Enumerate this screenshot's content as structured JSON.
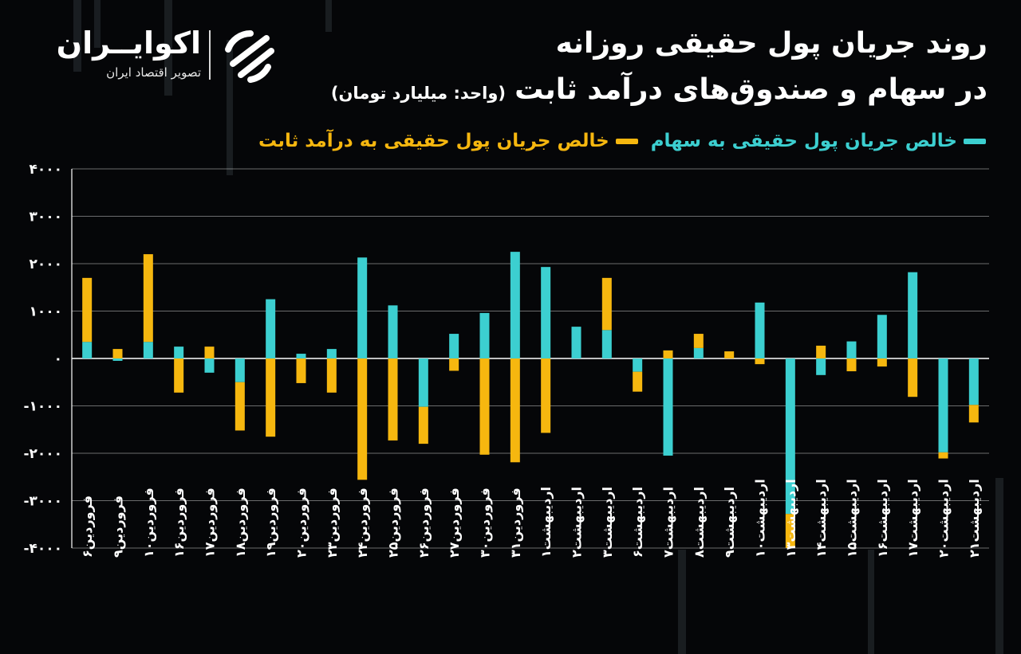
{
  "logo": {
    "name": "اکوایــران",
    "tagline": "تصویر اقتصاد ایران"
  },
  "title": {
    "line1": "روند جریان پول حقیقی روزانه",
    "line2": "در سهام و صندوق‌های درآمد ثابت",
    "unit": "(واحد: میلیارد تومان)"
  },
  "colors": {
    "background": "#050608",
    "stocks": "#3ccfd0",
    "fixed_income": "#f6b70f",
    "grid": "#ffffff"
  },
  "chart_data": {
    "type": "bar",
    "stacked": true,
    "ylim": [
      -4000,
      4000
    ],
    "yticks": [
      4000,
      3000,
      2000,
      1000,
      0,
      -1000,
      -2000,
      -3000,
      -4000
    ],
    "ytick_labels": [
      "۴۰۰۰",
      "۳۰۰۰",
      "۲۰۰۰",
      "۱۰۰۰",
      "۰",
      "-۱۰۰۰",
      "-۲۰۰۰",
      "-۳۰۰۰",
      "-۴۰۰۰"
    ],
    "grid": true,
    "legend_position": "top-right",
    "categories": [
      "فروردین۶",
      "فروردین۹",
      "فروردین۱۰",
      "فروردین۱۶",
      "فروردین۱۷",
      "فروردین۱۸",
      "فروردین۱۹",
      "فروردین۲۰",
      "فروردین۲۳",
      "فروردین۲۴",
      "فروردین۲۵",
      "فروردین۲۶",
      "فروردین۲۷",
      "فروردین۳۰",
      "فروردین۳۱",
      "اردیبهشت۱",
      "اردیبهشت۲",
      "اردیبهشت۳",
      "اردیبهشت۶",
      "اردیبهشت۷",
      "اردیبهشت۸",
      "اردیبهشت۹",
      "اردیبهشت۱۰",
      "اردیبهشت۱۳",
      "اردیبهشت۱۴",
      "اردیبهشت۱۵",
      "اردیبهشت۱۶",
      "اردیبهشت۱۷",
      "اردیبهشت۲۰",
      "اردیبهشت۲۱"
    ],
    "series": [
      {
        "name": "خالص جریان پول حقیقی به سهام",
        "color": "#3ccfd0",
        "values": [
          350,
          -50,
          350,
          250,
          -300,
          -500,
          1250,
          100,
          200,
          2130,
          1120,
          -1020,
          520,
          960,
          2250,
          1930,
          670,
          600,
          -280,
          -2050,
          220,
          0,
          1180,
          -3280,
          -350,
          360,
          920,
          1820,
          -1980,
          -980
        ]
      },
      {
        "name": "خالص جریان پول حقیقی به درآمد ثابت",
        "color": "#f6b70f",
        "values": [
          1350,
          200,
          1850,
          -720,
          250,
          -1020,
          -1650,
          -520,
          -720,
          -2560,
          -1730,
          -780,
          -260,
          -2030,
          -2190,
          -1570,
          0,
          1100,
          -420,
          170,
          300,
          150,
          -120,
          -720,
          270,
          -270,
          -170,
          -810,
          -130,
          -370
        ]
      }
    ]
  }
}
